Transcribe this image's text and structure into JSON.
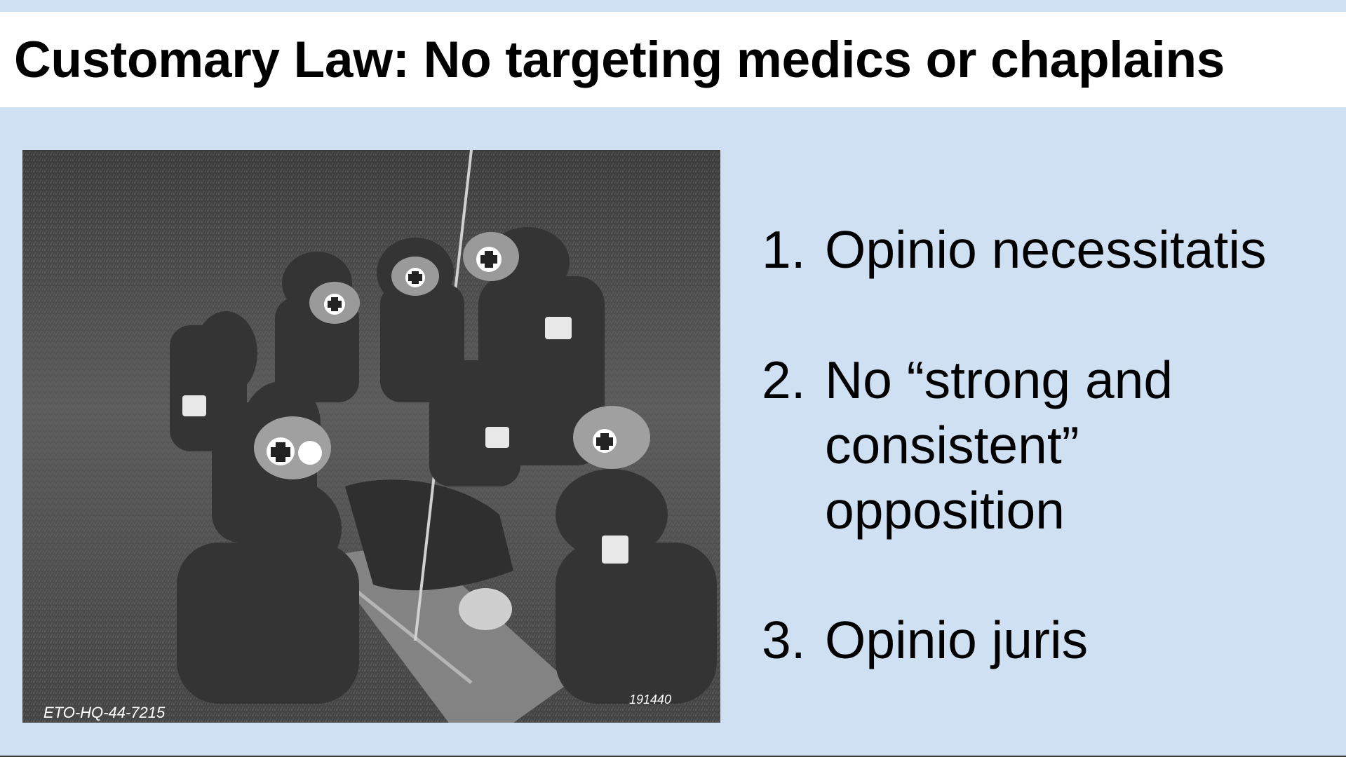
{
  "slide": {
    "title": "Customary Law: No targeting medics or chaplains",
    "photo": {
      "caption_left": "ETO-HQ-44-7215",
      "caption_right": "191440"
    },
    "bullets": [
      {
        "number": "1.",
        "text": "Opinio necessitatis"
      },
      {
        "number": "2.",
        "text": "No “strong and\nconsistent”\nopposition"
      },
      {
        "number": "3.",
        "text": "Opinio juris"
      }
    ]
  },
  "colors": {
    "background": "#cfe0f3",
    "title_bar": "#ffffff",
    "text": "#000000"
  }
}
